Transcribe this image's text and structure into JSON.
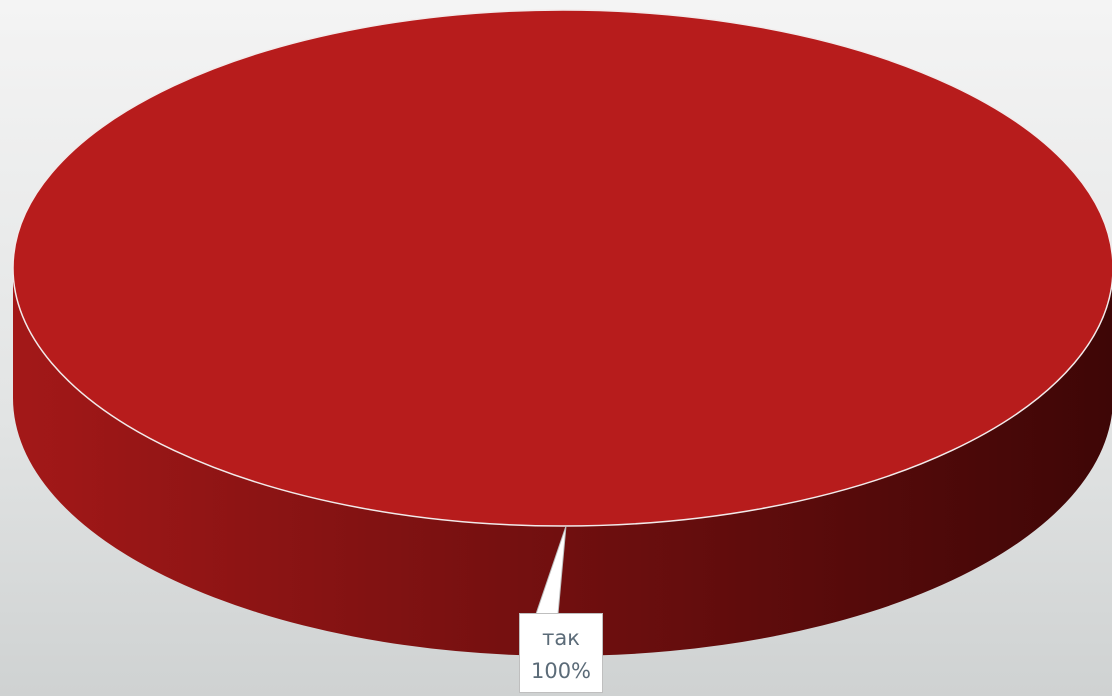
{
  "chart_data": {
    "type": "pie",
    "title": "",
    "categories": [
      "так"
    ],
    "values": [
      100
    ],
    "data_labels": [
      {
        "category": "так",
        "value_text": "100%"
      }
    ],
    "colors": {
      "top_face": "#b71c1c",
      "side_light": "#a31818",
      "side_dark": "#3e0606",
      "outline": "#f2eaea"
    },
    "style": "3d",
    "legend": "none"
  }
}
